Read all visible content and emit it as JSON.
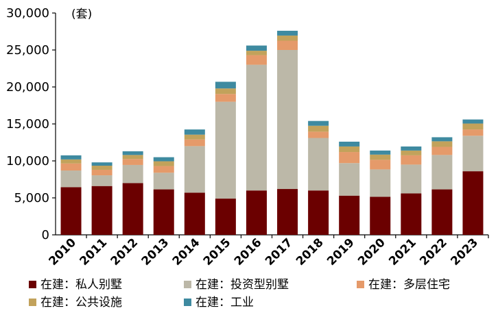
{
  "chart_data": {
    "type": "bar",
    "stacked": true,
    "unit": "(套)",
    "categories": [
      "2010",
      "2011",
      "2012",
      "2013",
      "2014",
      "2015",
      "2016",
      "2017",
      "2018",
      "2019",
      "2020",
      "2021",
      "2022",
      "2023"
    ],
    "y_ticks": [
      "0",
      "5,000",
      "10,000",
      "15,000",
      "20,000",
      "25,000",
      "30,000"
    ],
    "ylim": [
      0,
      30000
    ],
    "grid": false,
    "legend_position": "bottom",
    "series": [
      {
        "name": "在建：私人别墅",
        "color": "#6b0000",
        "values": [
          6450,
          6600,
          7000,
          6150,
          5700,
          4900,
          6000,
          6200,
          6000,
          5300,
          5150,
          5600,
          6150,
          8600
        ]
      },
      {
        "name": "在建：投资型别墅",
        "color": "#bcb8a8",
        "values": [
          2250,
          1450,
          2450,
          2250,
          6300,
          13100,
          17000,
          18800,
          7100,
          4400,
          3700,
          3900,
          4650,
          4800
        ]
      },
      {
        "name": "在建：多层住宅",
        "color": "#e59a6a",
        "values": [
          950,
          750,
          800,
          900,
          900,
          1050,
          1300,
          1250,
          850,
          1500,
          1300,
          1250,
          1100,
          850
        ]
      },
      {
        "name": "在建：公共设施",
        "color": "#c2a25b",
        "values": [
          550,
          550,
          550,
          650,
          650,
          750,
          600,
          700,
          800,
          750,
          700,
          650,
          750,
          800
        ]
      },
      {
        "name": "在建：工业",
        "color": "#3e8aa0",
        "values": [
          550,
          450,
          500,
          550,
          700,
          900,
          700,
          650,
          650,
          650,
          550,
          550,
          550,
          550
        ]
      }
    ]
  }
}
